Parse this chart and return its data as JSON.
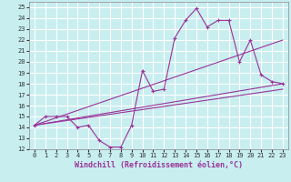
{
  "title": "",
  "xlabel": "Windchill (Refroidissement éolien,°C)",
  "background_color": "#c8eef0",
  "grid_color": "#ffffff",
  "line_color": "#993399",
  "xlim": [
    -0.5,
    23.5
  ],
  "ylim": [
    12,
    25.5
  ],
  "yticks": [
    12,
    13,
    14,
    15,
    16,
    17,
    18,
    19,
    20,
    21,
    22,
    23,
    24,
    25
  ],
  "xticks": [
    0,
    1,
    2,
    3,
    4,
    5,
    6,
    7,
    8,
    9,
    10,
    11,
    12,
    13,
    14,
    15,
    16,
    17,
    18,
    19,
    20,
    21,
    22,
    23
  ],
  "series1_x": [
    0,
    1,
    2,
    3,
    4,
    5,
    6,
    7,
    8,
    9,
    10,
    11,
    12,
    13,
    14,
    15,
    16,
    17,
    18,
    19,
    20,
    21,
    22,
    23
  ],
  "series1_y": [
    14.2,
    15.0,
    15.0,
    15.0,
    14.0,
    14.2,
    12.8,
    12.2,
    12.2,
    14.2,
    19.2,
    17.3,
    17.5,
    22.2,
    23.8,
    24.9,
    23.2,
    23.8,
    23.8,
    20.0,
    22.0,
    18.8,
    18.2,
    18.0
  ],
  "series2_x": [
    0,
    23
  ],
  "series2_y": [
    14.2,
    22.0
  ],
  "series3_x": [
    0,
    23
  ],
  "series3_y": [
    14.2,
    18.0
  ],
  "series4_x": [
    0,
    23
  ],
  "series4_y": [
    14.2,
    17.5
  ]
}
